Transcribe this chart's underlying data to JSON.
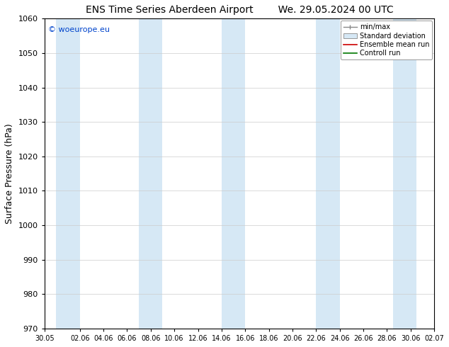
{
  "title_left": "ENS Time Series Aberdeen Airport",
  "title_right": "We. 29.05.2024 00 UTC",
  "ylabel": "Surface Pressure (hPa)",
  "ylim": [
    970,
    1060
  ],
  "yticks": [
    970,
    980,
    990,
    1000,
    1010,
    1020,
    1030,
    1040,
    1050,
    1060
  ],
  "xtick_labels": [
    "30.05",
    "02.06",
    "04.06",
    "06.06",
    "08.06",
    "10.06",
    "12.06",
    "14.06",
    "16.06",
    "18.06",
    "20.06",
    "22.06",
    "24.06",
    "26.06",
    "28.06",
    "30.06",
    "02.07"
  ],
  "xtick_positions": [
    0,
    3,
    5,
    7,
    9,
    11,
    13,
    15,
    17,
    19,
    21,
    23,
    25,
    27,
    29,
    31,
    33
  ],
  "xlim": [
    0,
    33
  ],
  "watermark": "© woeurope.eu",
  "band_color": "#d6e8f5",
  "background_color": "#ffffff",
  "legend_entries": [
    "min/max",
    "Standard deviation",
    "Ensemble mean run",
    "Controll run"
  ],
  "band_starts": [
    1.0,
    8.0,
    15.0,
    23.0,
    29.5
  ],
  "band_ends": [
    3.0,
    10.0,
    17.0,
    25.0,
    31.5
  ],
  "figsize": [
    6.34,
    4.9
  ],
  "dpi": 100
}
